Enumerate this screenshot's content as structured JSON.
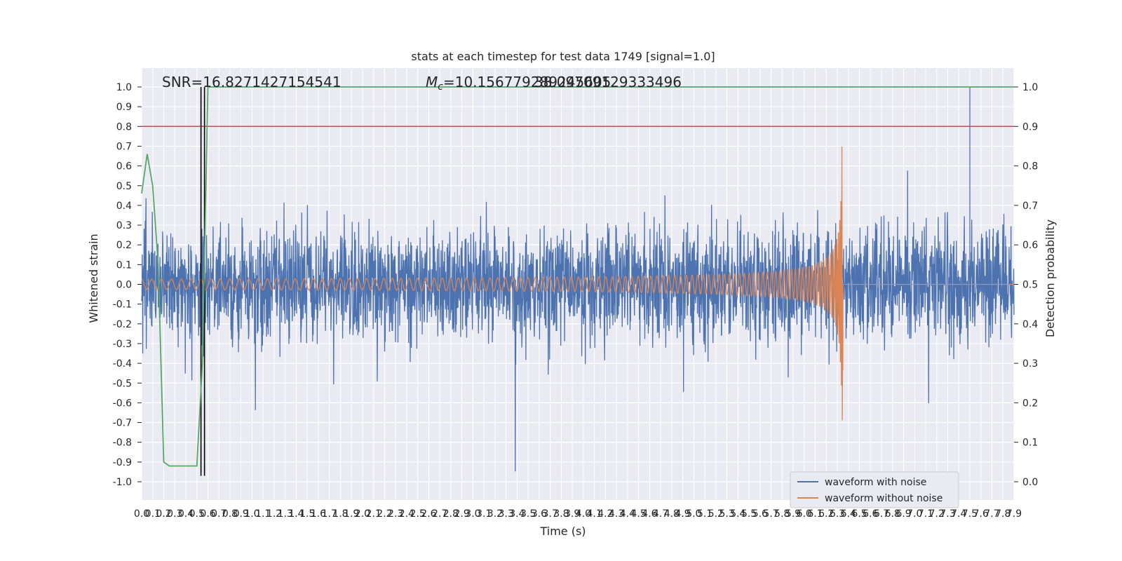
{
  "chart_data": {
    "type": "line",
    "title": "stats at each timestep for test data 1749 [signal=1.0]",
    "xlabel": "Time (s)",
    "ylabel": "Whitened strain",
    "y2label": "Detection probability",
    "xlim": [
      0.0,
      7.9
    ],
    "ylim": [
      -1.0,
      1.0
    ],
    "y2lim": [
      0.0,
      1.0
    ],
    "x_ticks": [
      "0.0",
      "0.1",
      "0.2",
      "0.3",
      "0.4",
      "0.5",
      "0.6",
      "0.7",
      "0.8",
      "0.9",
      "1.0",
      "1.1",
      "1.2",
      "1.3",
      "1.4",
      "1.5",
      "1.6",
      "1.7",
      "1.8",
      "1.9",
      "2.0",
      "2.1",
      "2.2",
      "2.3",
      "2.4",
      "2.5",
      "2.6",
      "2.7",
      "2.8",
      "2.9",
      "3.0",
      "3.1",
      "3.2",
      "3.3",
      "3.4",
      "3.5",
      "3.6",
      "3.7",
      "3.8",
      "3.9",
      "4.0",
      "4.1",
      "4.2",
      "4.3",
      "4.4",
      "4.5",
      "4.6",
      "4.7",
      "4.8",
      "4.9",
      "5.0",
      "5.1",
      "5.2",
      "5.3",
      "5.4",
      "5.5",
      "5.6",
      "5.7",
      "5.8",
      "5.9",
      "6.0",
      "6.1",
      "6.2",
      "6.3",
      "6.4",
      "6.5",
      "6.6",
      "6.7",
      "6.8",
      "6.9",
      "7.0",
      "7.1",
      "7.2",
      "7.3",
      "7.4",
      "7.5",
      "7.6",
      "7.7",
      "7.8",
      "7.9"
    ],
    "y_ticks": [
      "1.0",
      "0.9",
      "0.8",
      "0.7",
      "0.6",
      "0.5",
      "0.4",
      "0.3",
      "0.2",
      "0.1",
      "0.0",
      "-0.1",
      "-0.2",
      "-0.3",
      "-0.4",
      "-0.5",
      "-0.6",
      "-0.7",
      "-0.8",
      "-0.9",
      "-1.0"
    ],
    "y2_ticks": [
      "1.0",
      "0.9",
      "0.8",
      "0.7",
      "0.6",
      "0.5",
      "0.4",
      "0.3",
      "0.2",
      "0.1",
      "0.0"
    ],
    "annotations": {
      "snr": "SNR=16.8271427154541",
      "mc": "M_c=10.156779289245605",
      "mc_overlap": "38.09709129333496"
    },
    "threshold_y": 0.8,
    "marker_x": 0.55,
    "detection_probability": {
      "x": [
        0.0,
        0.05,
        0.1,
        0.15,
        0.2,
        0.25,
        0.3,
        0.4,
        0.5,
        0.55,
        0.6,
        0.65,
        7.9
      ],
      "y": [
        0.73,
        0.83,
        0.75,
        0.55,
        0.05,
        0.04,
        0.04,
        0.04,
        0.04,
        0.3,
        1.0,
        1.0,
        1.0
      ]
    },
    "series": [
      {
        "name": "waveform with noise",
        "color": "#4c72b0",
        "noise_amplitude": 0.5,
        "peak": 1.0
      },
      {
        "name": "waveform without noise",
        "color": "#dd8452",
        "chirp_start_amplitude": 0.02,
        "chirp_peak_amplitude": 0.7,
        "merger_time": 6.35
      }
    ],
    "legend": "lower-right",
    "grid": true,
    "colors": {
      "background": "#eaeaf2",
      "grid": "#ffffff",
      "probability": "#55a868",
      "threshold": "#c44e52",
      "marker": "#000000"
    }
  }
}
